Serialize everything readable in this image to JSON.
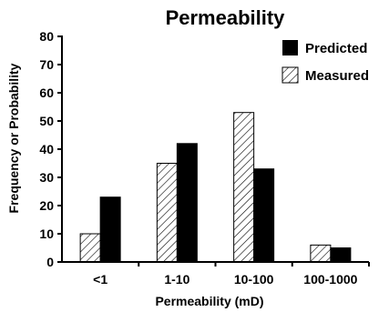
{
  "chart_data": {
    "type": "bar",
    "title": "Permeability",
    "xlabel": "Permeability (mD)",
    "ylabel": "Frequency or Probability",
    "categories": [
      "<1",
      "1-10",
      "10-100",
      "100-1000"
    ],
    "series": [
      {
        "name": "Predicted",
        "values": [
          23,
          42,
          33,
          5
        ],
        "fill": "solid",
        "color": "#000000"
      },
      {
        "name": "Measured",
        "values": [
          10,
          35,
          53,
          6
        ],
        "fill": "hatched",
        "color": "#000000"
      }
    ],
    "ylim": [
      0,
      80
    ],
    "yticks": [
      "0",
      "10",
      "20",
      "30",
      "40",
      "50",
      "60",
      "70",
      "80"
    ],
    "grid": false,
    "legend_position": "top-right"
  }
}
